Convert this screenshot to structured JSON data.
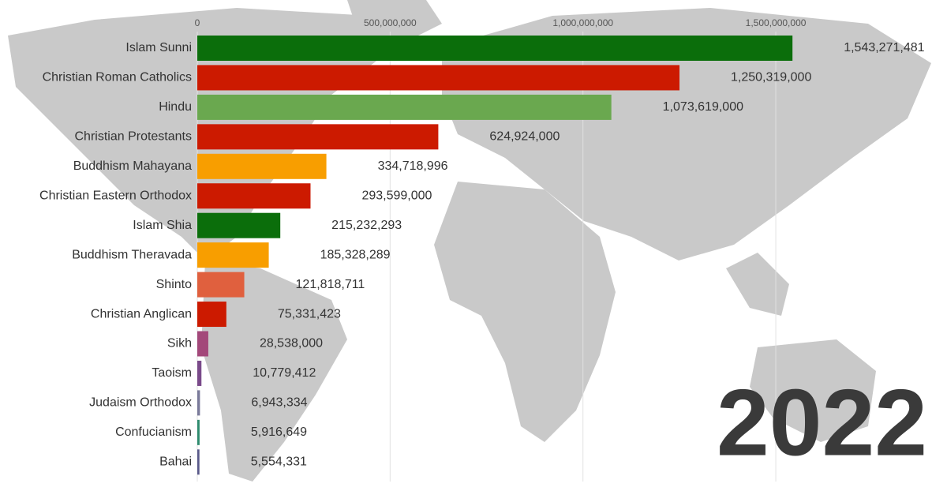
{
  "chart_data": {
    "type": "bar",
    "orientation": "horizontal",
    "categories": [
      "Islam Sunni",
      "Christian Roman Catholics",
      "Hindu",
      "Christian Protestants",
      "Buddhism Mahayana",
      "Christian Eastern Orthodox",
      "Islam Shia",
      "Buddhism Theravada",
      "Shinto",
      "Christian Anglican",
      "Sikh",
      "Taoism",
      "Judaism Orthodox",
      "Confucianism",
      "Bahai"
    ],
    "values": [
      1543271481,
      1250319000,
      1073619000,
      624924000,
      334718996,
      293599000,
      215232293,
      185328289,
      121818711,
      75331423,
      28538000,
      10779412,
      6943334,
      5916649,
      5554331
    ],
    "value_labels": [
      "1,543,271,481",
      "1,250,319,000",
      "1,073,619,000",
      "624,924,000",
      "334,718,996",
      "293,599,000",
      "215,232,293",
      "185,328,289",
      "121,818,711",
      "75,331,423",
      "28,538,000",
      "10,779,412",
      "6,943,334",
      "5,916,649",
      "5,554,331"
    ],
    "colors": [
      "#0b6e0b",
      "#cc1a00",
      "#6aa84f",
      "#cc1a00",
      "#f89e00",
      "#cc1a00",
      "#0b6e0b",
      "#f89e00",
      "#e0603e",
      "#cc1a00",
      "#a3487a",
      "#7a4a8a",
      "#7a7a9a",
      "#2e8b6e",
      "#5a5a8a"
    ],
    "xlim": [
      0,
      1900000000
    ],
    "xticks": [
      {
        "value": 0,
        "label": "0"
      },
      {
        "value": 500000000,
        "label": "500,000,000"
      },
      {
        "value": 1000000000,
        "label": "1,000,000,000"
      },
      {
        "value": 1500000000,
        "label": "1,500,000,000"
      }
    ],
    "grid": true,
    "annotation": "2022"
  }
}
